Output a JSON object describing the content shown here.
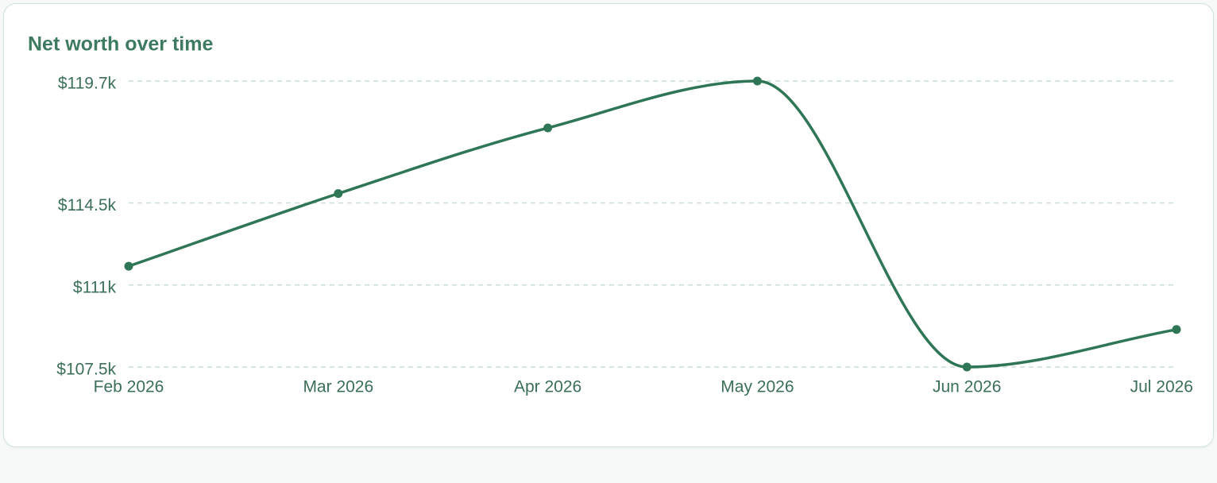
{
  "chart_data": {
    "type": "line",
    "title": "Net worth over time",
    "categories": [
      "Feb 2026",
      "Mar 2026",
      "Apr 2026",
      "May 2026",
      "Jun 2026",
      "Jul 2026"
    ],
    "series": [
      {
        "name": "Net worth",
        "color": "#2f7656",
        "values": [
          111800,
          114900,
          117700,
          119700,
          107500,
          109100
        ]
      }
    ],
    "ylim": [
      107500,
      119700
    ],
    "yticks": [
      {
        "value": 107500,
        "label": "$107.5k"
      },
      {
        "value": 111000,
        "label": "$111k"
      },
      {
        "value": 114500,
        "label": "$114.5k"
      },
      {
        "value": 119700,
        "label": "$119.7k"
      }
    ],
    "grid": true
  }
}
